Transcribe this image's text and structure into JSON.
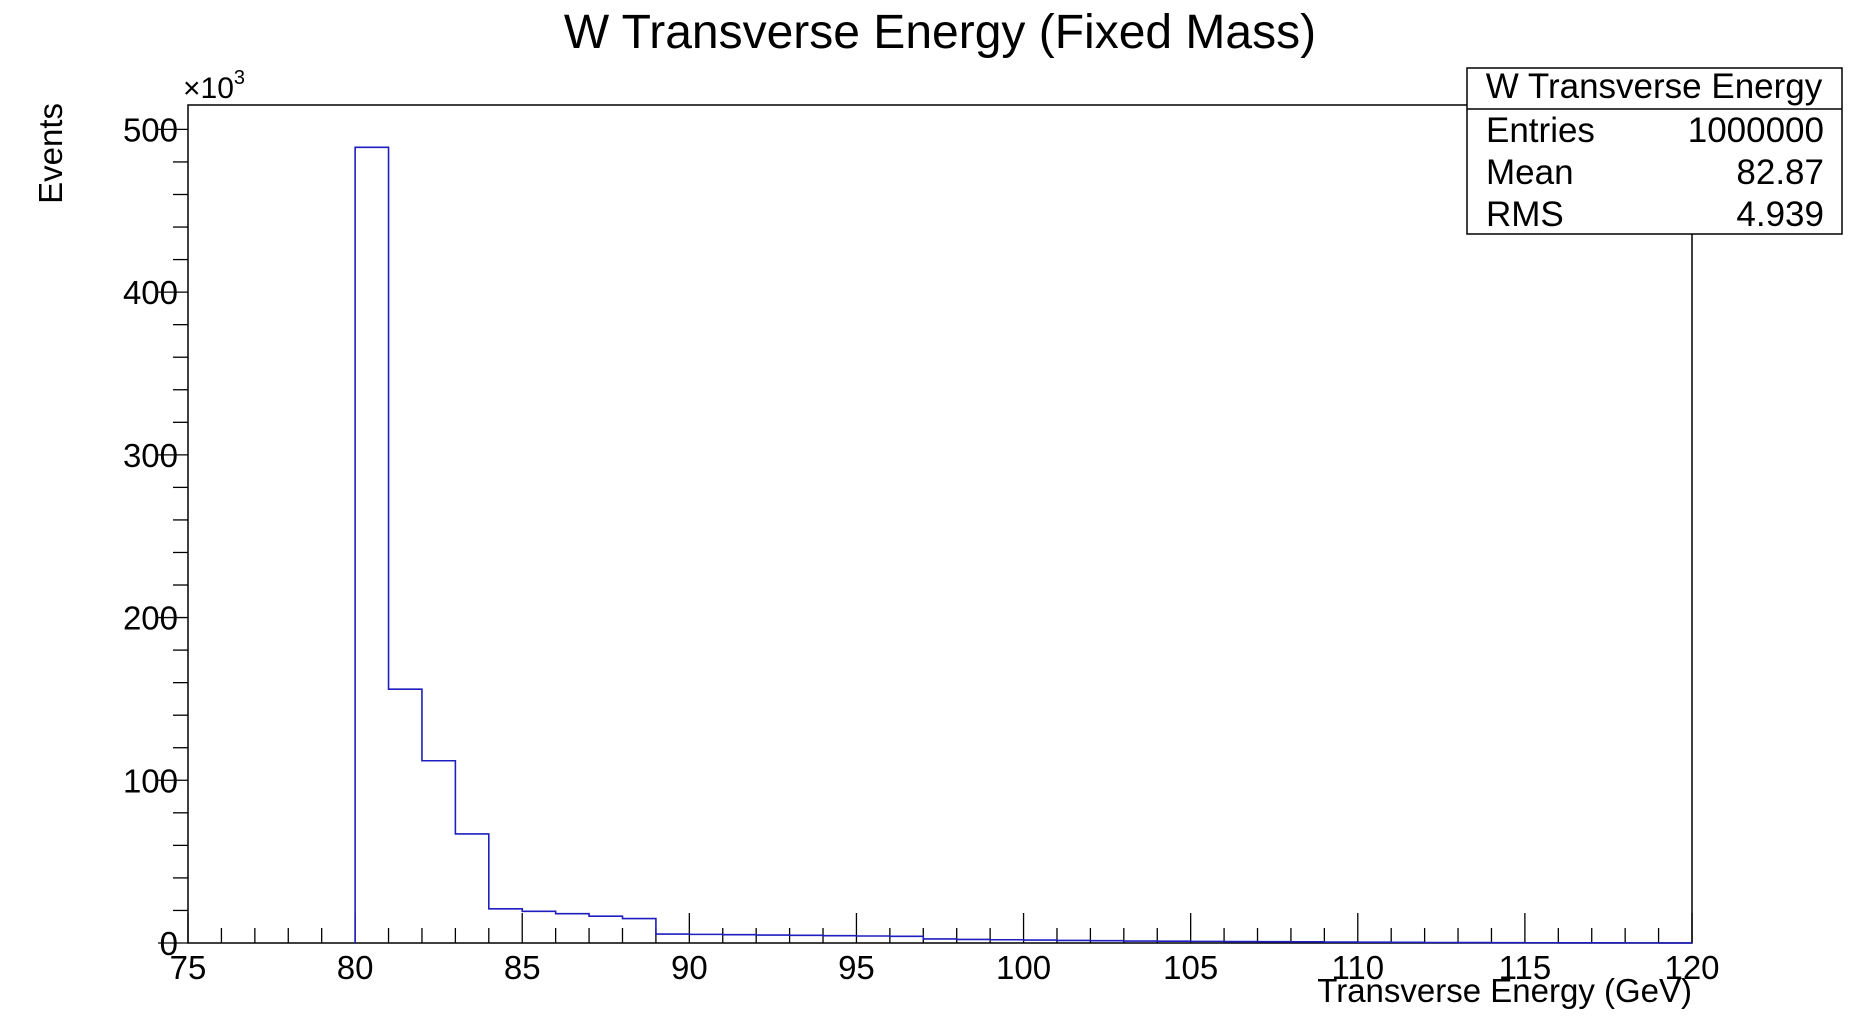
{
  "chart_data": {
    "type": "bar",
    "title": "W Transverse Energy (Fixed Mass)",
    "xlabel": "Transverse Energy (GeV)",
    "ylabel": "Events",
    "y_exponent_base": "×10",
    "y_exponent_power": "3",
    "xlim": [
      75,
      120
    ],
    "ylim": [
      0,
      515
    ],
    "x_ticks": [
      "75",
      "80",
      "85",
      "90",
      "95",
      "100",
      "105",
      "110",
      "115",
      "120"
    ],
    "y_ticks": [
      "0",
      "100",
      "200",
      "300",
      "400",
      "500"
    ],
    "x_tick_values": [
      75,
      80,
      85,
      90,
      95,
      100,
      105,
      110,
      115,
      120
    ],
    "y_tick_values": [
      0,
      100,
      200,
      300,
      400,
      500
    ],
    "bins": {
      "edges": [
        80,
        81,
        82,
        83,
        84,
        85,
        86,
        87,
        88,
        89,
        90,
        91,
        92,
        93,
        94,
        95,
        96,
        97,
        98,
        99,
        100,
        101,
        102,
        103,
        104,
        105,
        106,
        107,
        108,
        109,
        110,
        111,
        112,
        113,
        114,
        115,
        116,
        117,
        118,
        119,
        120
      ],
      "counts": [
        489,
        156,
        112,
        67,
        21,
        19.5,
        18,
        16.5,
        15,
        5.5,
        5.3,
        5.1,
        4.9,
        4.7,
        4.5,
        4.3,
        4.1,
        2.5,
        2.2,
        2,
        1.8,
        1.6,
        1.4,
        1.2,
        1.1,
        1,
        0.9,
        0.8,
        0.7,
        0.6,
        0.5,
        0.4,
        0.3,
        0.25,
        0.2,
        0.15,
        0.12,
        0.1,
        0.08,
        0.05
      ]
    },
    "series": [
      {
        "color": "#1f1fbf"
      }
    ],
    "grid": false,
    "legend": "none",
    "stats_box": {
      "title": "W Transverse Energy",
      "rows": [
        {
          "label": "Entries",
          "value": "1000000"
        },
        {
          "label": "Mean",
          "value": "82.87"
        },
        {
          "label": "RMS",
          "value": "4.939"
        }
      ]
    }
  }
}
